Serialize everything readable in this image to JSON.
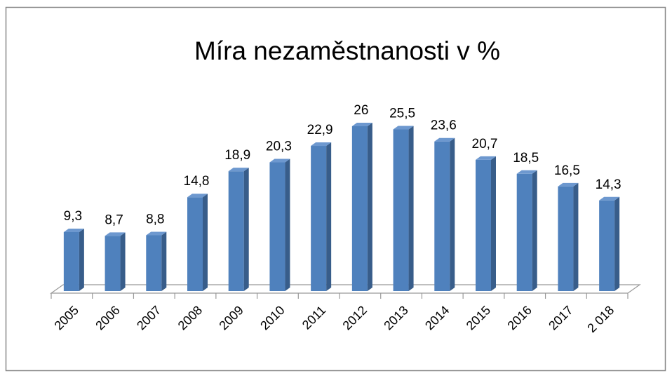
{
  "chart_data": {
    "type": "bar3d",
    "title": "Míra nezaměstnanosti v %",
    "categories": [
      "2005",
      "2006",
      "2007",
      "2008",
      "2009",
      "2010",
      "2011",
      "2012",
      "2013",
      "2014",
      "2015",
      "2016",
      "2017",
      "2 018"
    ],
    "values": [
      9.3,
      8.7,
      8.8,
      14.8,
      18.9,
      20.3,
      22.9,
      26,
      25.5,
      23.6,
      20.7,
      18.5,
      16.5,
      14.3
    ],
    "value_labels": [
      "9,3",
      "8,7",
      "8,8",
      "14,8",
      "18,9",
      "20,3",
      "22,9",
      "26",
      "25,5",
      "23,6",
      "20,7",
      "18,5",
      "16,5",
      "14,3"
    ],
    "color": "#4f81bd"
  }
}
